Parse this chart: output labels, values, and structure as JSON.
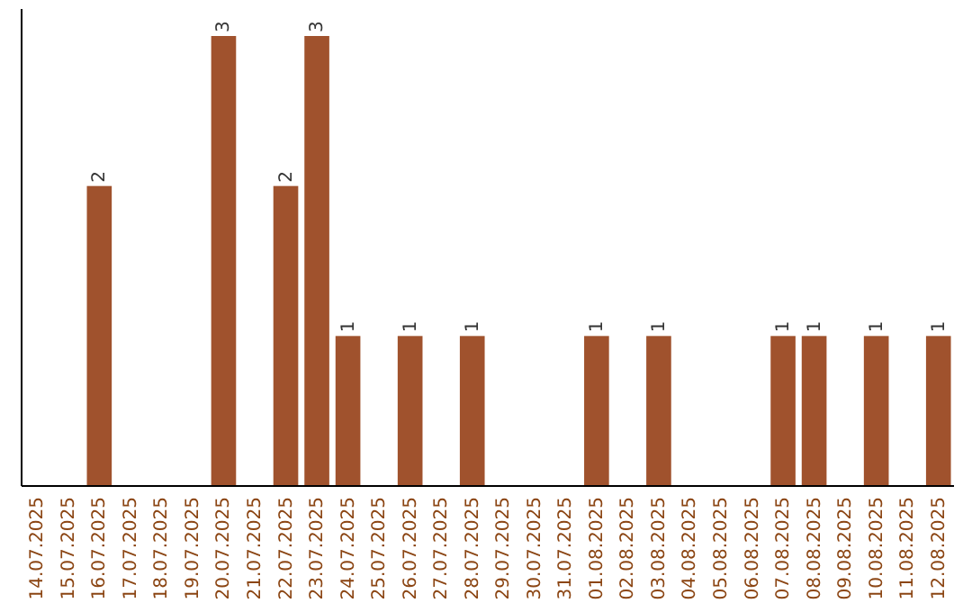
{
  "chart_data": {
    "type": "bar",
    "categories": [
      "14.07.2025",
      "15.07.2025",
      "16.07.2025",
      "17.07.2025",
      "18.07.2025",
      "19.07.2025",
      "20.07.2025",
      "21.07.2025",
      "22.07.2025",
      "23.07.2025",
      "24.07.2025",
      "25.07.2025",
      "26.07.2025",
      "27.07.2025",
      "28.07.2025",
      "29.07.2025",
      "30.07.2025",
      "31.07.2025",
      "01.08.2025",
      "02.08.2025",
      "03.08.2025",
      "04.08.2025",
      "05.08.2025",
      "06.08.2025",
      "07.08.2025",
      "08.08.2025",
      "09.08.2025",
      "10.08.2025",
      "11.08.2025",
      "12.08.2025"
    ],
    "values": [
      0,
      0,
      2,
      0,
      0,
      0,
      3,
      0,
      2,
      3,
      1,
      0,
      1,
      0,
      1,
      0,
      0,
      0,
      1,
      0,
      1,
      0,
      0,
      0,
      1,
      1,
      0,
      1,
      0,
      1
    ],
    "value_labels": [
      null,
      null,
      "2",
      null,
      null,
      null,
      "3",
      null,
      "2",
      "3",
      "1",
      null,
      "1",
      null,
      "1",
      null,
      null,
      null,
      "1",
      null,
      "1",
      null,
      null,
      null,
      "1",
      "1",
      null,
      "1",
      null,
      "1"
    ],
    "color": "#a0522d"
  }
}
